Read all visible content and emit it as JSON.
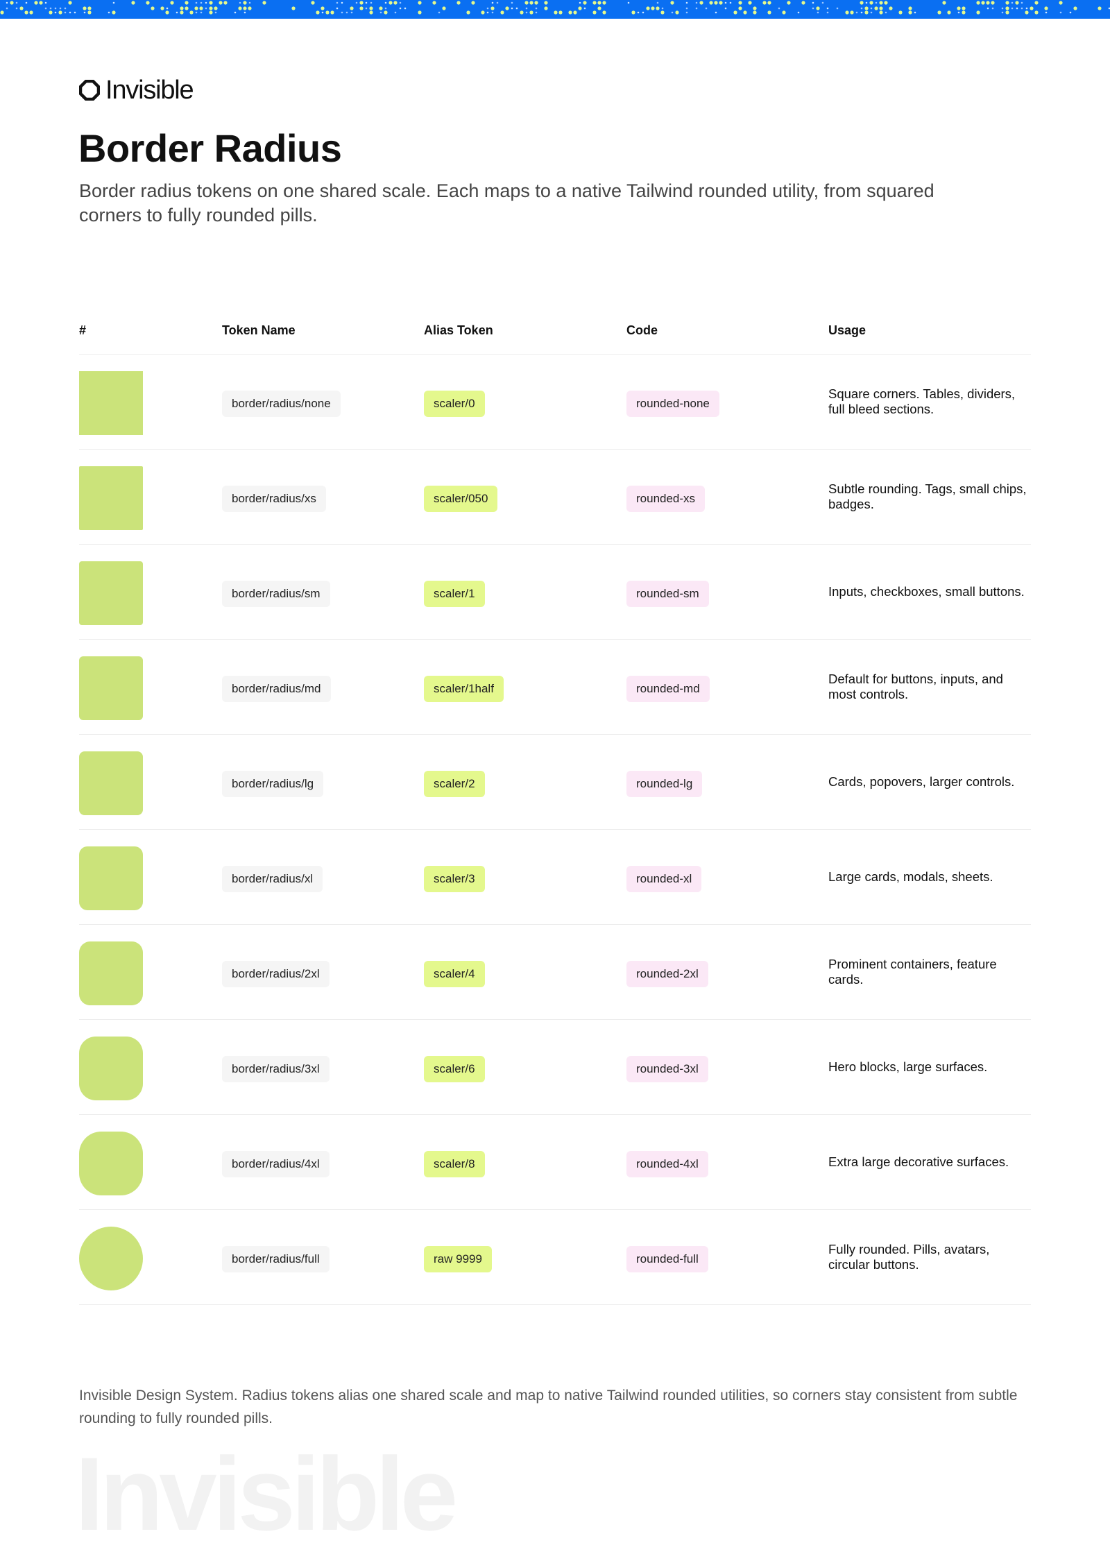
{
  "brand": {
    "name": "Invisible",
    "banner_color": "#0a6ff2",
    "accent_color": "#e4f88d",
    "swatch_color": "#cbe37a",
    "code_color": "#fbe8f6",
    "logo_icon": "rounded-octagon-ring-icon"
  },
  "page": {
    "title": "Border Radius",
    "subtitle": "Border radius tokens on one shared scale. Each maps to a native Tailwind rounded utility, from squared corners to fully rounded pills."
  },
  "table": {
    "headers": {
      "index": "#",
      "token": "Token Name",
      "alias": "Alias Token",
      "code": "Code",
      "usage": "Usage"
    },
    "rows": [
      {
        "radius": 0,
        "token": "border/radius/none",
        "alias": "scaler/0",
        "code": "rounded-none",
        "usage": "Square corners. Tables, dividers, full bleed sections."
      },
      {
        "radius": 2,
        "token": "border/radius/xs",
        "alias": "scaler/050",
        "code": "rounded-xs",
        "usage": "Subtle rounding. Tags, small chips, badges."
      },
      {
        "radius": 4,
        "token": "border/radius/sm",
        "alias": "scaler/1",
        "code": "rounded-sm",
        "usage": "Inputs, checkboxes, small buttons."
      },
      {
        "radius": 6,
        "token": "border/radius/md",
        "alias": "scaler/1half",
        "code": "rounded-md",
        "usage": "Default for buttons, inputs, and most controls."
      },
      {
        "radius": 8,
        "token": "border/radius/lg",
        "alias": "scaler/2",
        "code": "rounded-lg",
        "usage": "Cards, popovers, larger controls."
      },
      {
        "radius": 12,
        "token": "border/radius/xl",
        "alias": "scaler/3",
        "code": "rounded-xl",
        "usage": "Large cards, modals, sheets."
      },
      {
        "radius": 16,
        "token": "border/radius/2xl",
        "alias": "scaler/4",
        "code": "rounded-2xl",
        "usage": "Prominent containers, feature cards."
      },
      {
        "radius": 24,
        "token": "border/radius/3xl",
        "alias": "scaler/6",
        "code": "rounded-3xl",
        "usage": "Hero blocks, large surfaces."
      },
      {
        "radius": 32,
        "token": "border/radius/4xl",
        "alias": "scaler/8",
        "code": "rounded-4xl",
        "usage": "Extra large decorative surfaces."
      },
      {
        "radius": 9999,
        "token": "border/radius/full",
        "alias": "raw 9999",
        "code": "rounded-full",
        "usage": "Fully rounded. Pills, avatars, circular buttons."
      }
    ]
  },
  "footer": {
    "note": "Invisible Design System. Radius tokens alias one shared scale and map to native Tailwind rounded utilities, so corners stay consistent from subtle rounding to fully rounded pills.",
    "watermark": "Invisible"
  }
}
